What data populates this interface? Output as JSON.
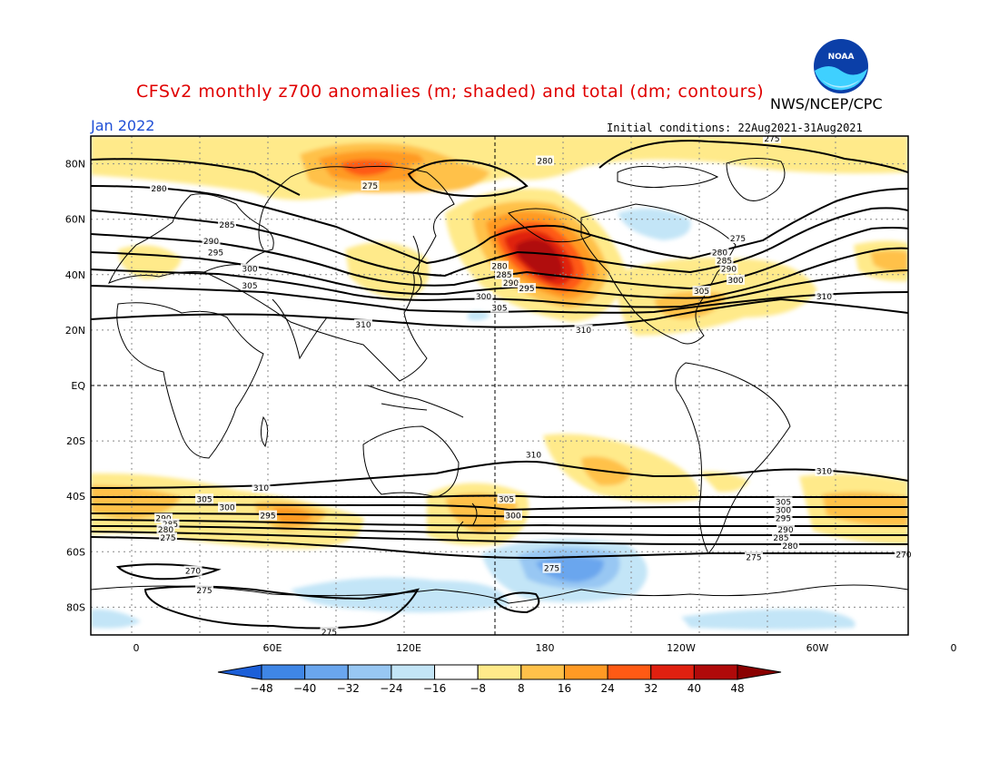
{
  "header": {
    "title": "CFSv2 monthly z700 anomalies (m; shaded) and total (dm; contours)",
    "agency": "NWS/NCEP/CPC",
    "valid_month": "Jan 2022",
    "initial_conditions": "Initial conditions: 22Aug2021-31Aug2021",
    "logo_text": "NOAA"
  },
  "map": {
    "projection": "cylindrical equidistant",
    "lon_range": [
      -20,
      340
    ],
    "lat_range": [
      -90,
      90
    ],
    "lat_labels": [
      {
        "lat": 80,
        "text": "80N"
      },
      {
        "lat": 60,
        "text": "60N"
      },
      {
        "lat": 40,
        "text": "40N"
      },
      {
        "lat": 20,
        "text": "20N"
      },
      {
        "lat": 0,
        "text": "EQ"
      },
      {
        "lat": -20,
        "text": "20S"
      },
      {
        "lat": -40,
        "text": "40S"
      },
      {
        "lat": -60,
        "text": "60S"
      },
      {
        "lat": -80,
        "text": "80S"
      }
    ],
    "lon_labels": [
      {
        "lon": 0,
        "text": "0"
      },
      {
        "lon": 60,
        "text": "60E"
      },
      {
        "lon": 120,
        "text": "120E"
      },
      {
        "lon": 180,
        "text": "180"
      },
      {
        "lon": 240,
        "text": "120W"
      },
      {
        "lon": 300,
        "text": "60W"
      },
      {
        "lon": 360,
        "text": "0"
      }
    ]
  },
  "colorbar": {
    "ticks": [
      "-48",
      "-40",
      "-32",
      "-24",
      "-16",
      "-8",
      "8",
      "16",
      "24",
      "32",
      "40",
      "48"
    ],
    "colors": [
      "#1c5fd8",
      "#3f86e6",
      "#6aa6ee",
      "#98c7f3",
      "#c3e5f7",
      "#ffffff",
      "#ffea8a",
      "#ffc14a",
      "#ff9a24",
      "#ff5a14",
      "#e02010",
      "#b00a0a",
      "#8a0000"
    ]
  },
  "contour_labels": [
    {
      "text": "280",
      "lon": 180,
      "lat": 81
    },
    {
      "text": "275",
      "lon": 280,
      "lat": 89
    },
    {
      "text": "280",
      "lon": 10,
      "lat": 71
    },
    {
      "text": "275",
      "lon": 103,
      "lat": 72
    },
    {
      "text": "285",
      "lon": 40,
      "lat": 58
    },
    {
      "text": "290",
      "lon": 33,
      "lat": 52
    },
    {
      "text": "295",
      "lon": 35,
      "lat": 48
    },
    {
      "text": "300",
      "lon": 50,
      "lat": 42
    },
    {
      "text": "305",
      "lon": 50,
      "lat": 36
    },
    {
      "text": "310",
      "lon": 100,
      "lat": 22
    },
    {
      "text": "280",
      "lon": 160,
      "lat": 43
    },
    {
      "text": "285",
      "lon": 162,
      "lat": 40
    },
    {
      "text": "290",
      "lon": 165,
      "lat": 37
    },
    {
      "text": "295",
      "lon": 172,
      "lat": 35
    },
    {
      "text": "300",
      "lon": 153,
      "lat": 32
    },
    {
      "text": "305",
      "lon": 160,
      "lat": 28
    },
    {
      "text": "310",
      "lon": 197,
      "lat": 20
    },
    {
      "text": "275",
      "lon": 265,
      "lat": 53
    },
    {
      "text": "280",
      "lon": 257,
      "lat": 48
    },
    {
      "text": "285",
      "lon": 259,
      "lat": 45
    },
    {
      "text": "290",
      "lon": 261,
      "lat": 42
    },
    {
      "text": "300",
      "lon": 264,
      "lat": 38
    },
    {
      "text": "305",
      "lon": 249,
      "lat": 34
    },
    {
      "text": "310",
      "lon": 303,
      "lat": 32
    },
    {
      "text": "310",
      "lon": 175,
      "lat": -25
    },
    {
      "text": "310",
      "lon": 55,
      "lat": -37
    },
    {
      "text": "310",
      "lon": 303,
      "lat": -31
    },
    {
      "text": "305",
      "lon": 30,
      "lat": -41
    },
    {
      "text": "300",
      "lon": 40,
      "lat": -44
    },
    {
      "text": "295",
      "lon": 58,
      "lat": -47
    },
    {
      "text": "290",
      "lon": 12,
      "lat": -48
    },
    {
      "text": "285",
      "lon": 15,
      "lat": -50
    },
    {
      "text": "280",
      "lon": 13,
      "lat": -52
    },
    {
      "text": "275",
      "lon": 14,
      "lat": -55
    },
    {
      "text": "305",
      "lon": 163,
      "lat": -41
    },
    {
      "text": "300",
      "lon": 166,
      "lat": -47
    },
    {
      "text": "305",
      "lon": 285,
      "lat": -42
    },
    {
      "text": "300",
      "lon": 285,
      "lat": -45
    },
    {
      "text": "295",
      "lon": 285,
      "lat": -48
    },
    {
      "text": "290",
      "lon": 286,
      "lat": -52
    },
    {
      "text": "285",
      "lon": 284,
      "lat": -55
    },
    {
      "text": "280",
      "lon": 288,
      "lat": -58
    },
    {
      "text": "275",
      "lon": 272,
      "lat": -62
    },
    {
      "text": "270",
      "lon": 338,
      "lat": -61
    },
    {
      "text": "270",
      "lon": 25,
      "lat": -67
    },
    {
      "text": "275",
      "lon": 30,
      "lat": -74
    },
    {
      "text": "275",
      "lon": 183,
      "lat": -66
    },
    {
      "text": "275",
      "lon": 85,
      "lat": -89
    }
  ]
}
